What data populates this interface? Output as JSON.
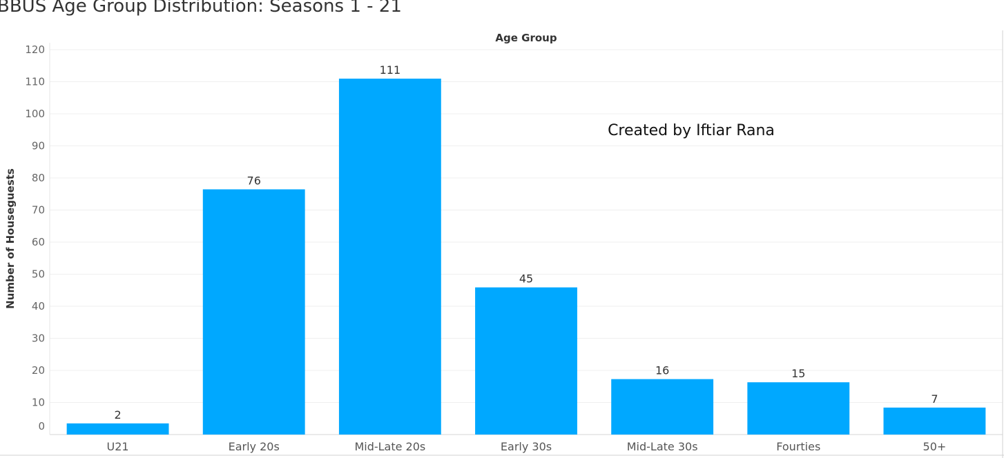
{
  "title": "BBUS Age Group Distribution: Seasons 1 - 21",
  "chart_data": {
    "type": "bar",
    "title": "BBUS Age Group Distribution: Seasons 1 - 21",
    "xlabel": "Age Group",
    "ylabel": "Number of Houseguests",
    "categories": [
      "U21",
      "Early 20s",
      "Mid-Late 20s",
      "Early 30s",
      "Mid-Late 30s",
      "Fourties",
      "50+"
    ],
    "values": [
      2,
      76,
      111,
      45,
      16,
      15,
      7
    ],
    "ylim": [
      0,
      120
    ],
    "yticks": [
      0,
      10,
      20,
      30,
      40,
      50,
      60,
      70,
      80,
      90,
      100,
      110,
      120
    ],
    "grid": true,
    "bar_color": "#00a8ff",
    "annotation": "Created by Iftiar Rana"
  }
}
